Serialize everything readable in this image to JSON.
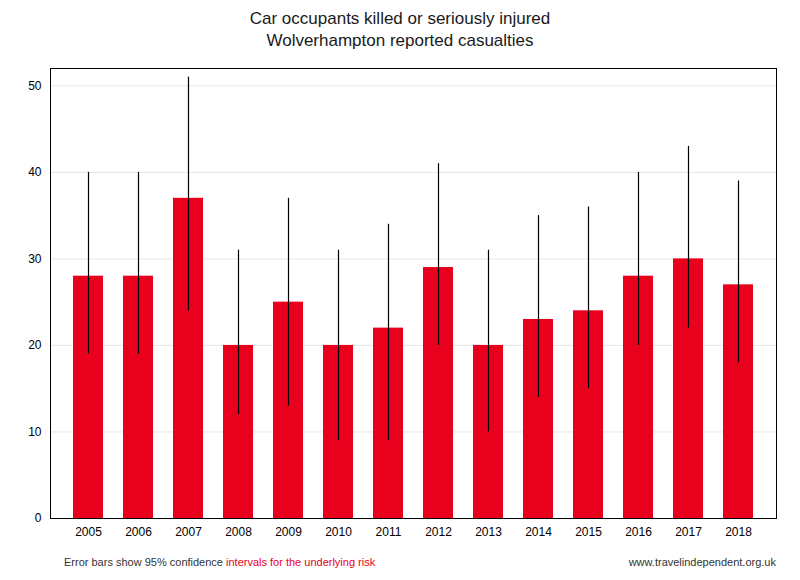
{
  "chart_data": {
    "type": "bar",
    "title": "Car occupants killed or seriously injured\nWolverhampton reported casualties",
    "categories": [
      "2005",
      "2006",
      "2007",
      "2008",
      "2009",
      "2010",
      "2011",
      "2012",
      "2013",
      "2014",
      "2015",
      "2016",
      "2017",
      "2018"
    ],
    "values": [
      28,
      28,
      37,
      20,
      25,
      20,
      22,
      29,
      20,
      23,
      24,
      28,
      30,
      27
    ],
    "err_low": [
      9,
      9,
      13,
      8,
      12,
      11,
      13,
      9,
      10,
      9,
      9,
      8,
      8,
      9
    ],
    "err_high": [
      12,
      12,
      14,
      11,
      12,
      11,
      12,
      12,
      11,
      12,
      12,
      12,
      13,
      12
    ],
    "color": "#e8001c",
    "ylim": [
      0,
      52
    ],
    "yticks": [
      0,
      10,
      20,
      30,
      40,
      50
    ],
    "grid": true,
    "annotations": [
      {
        "text": "Error bars show 95% confidence ",
        "color": "#333333"
      },
      {
        "text": "intervals for the underlying risk",
        "color": "#e8001c"
      },
      {
        "text": "www.travelindependent.org.uk",
        "color": "#333333"
      }
    ]
  }
}
